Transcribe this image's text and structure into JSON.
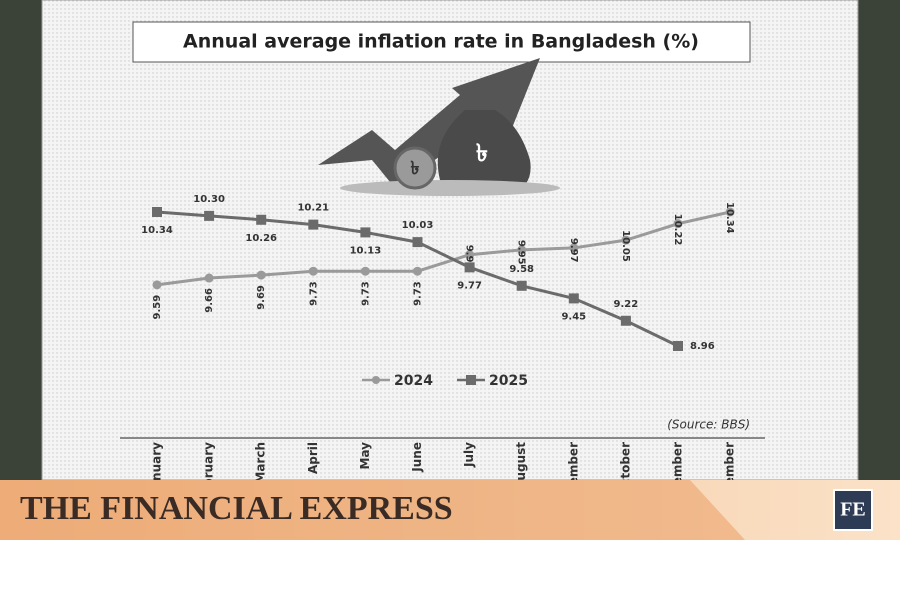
{
  "chart_data": {
    "type": "line",
    "title": "Annual average inflation rate in Bangladesh (%)",
    "categories": [
      "January",
      "February",
      "March",
      "April",
      "May",
      "June",
      "July",
      "August",
      "September",
      "October",
      "November",
      "December"
    ],
    "series": [
      {
        "name": "2024",
        "color": "#9a9a9a",
        "marker": "circle",
        "values": [
          9.59,
          9.66,
          9.69,
          9.73,
          9.73,
          9.73,
          9.9,
          9.95,
          9.97,
          10.05,
          10.22,
          10.34
        ],
        "value_labels": [
          "9.59",
          "9.66",
          "9.69",
          "9.73",
          "9.73",
          "9.73",
          "9.90",
          "9.95",
          "9.97",
          "10.05",
          "10.22",
          "10.34"
        ]
      },
      {
        "name": "2025",
        "color": "#6b6b6b",
        "marker": "square",
        "values": [
          10.34,
          10.3,
          10.26,
          10.21,
          10.13,
          10.03,
          9.77,
          9.58,
          9.45,
          9.22,
          8.96,
          null
        ],
        "value_labels": [
          "10.34",
          "10.30",
          "10.26",
          "10.21",
          "10.13",
          "10.03",
          "9.77",
          "9.58",
          "9.45",
          "9.22",
          "8.96",
          null
        ]
      }
    ],
    "legend": "bottom",
    "source": "(Source: BBS)"
  },
  "banner": {
    "title": "THE FINANCIAL EXPRESS",
    "logo": "FE"
  }
}
